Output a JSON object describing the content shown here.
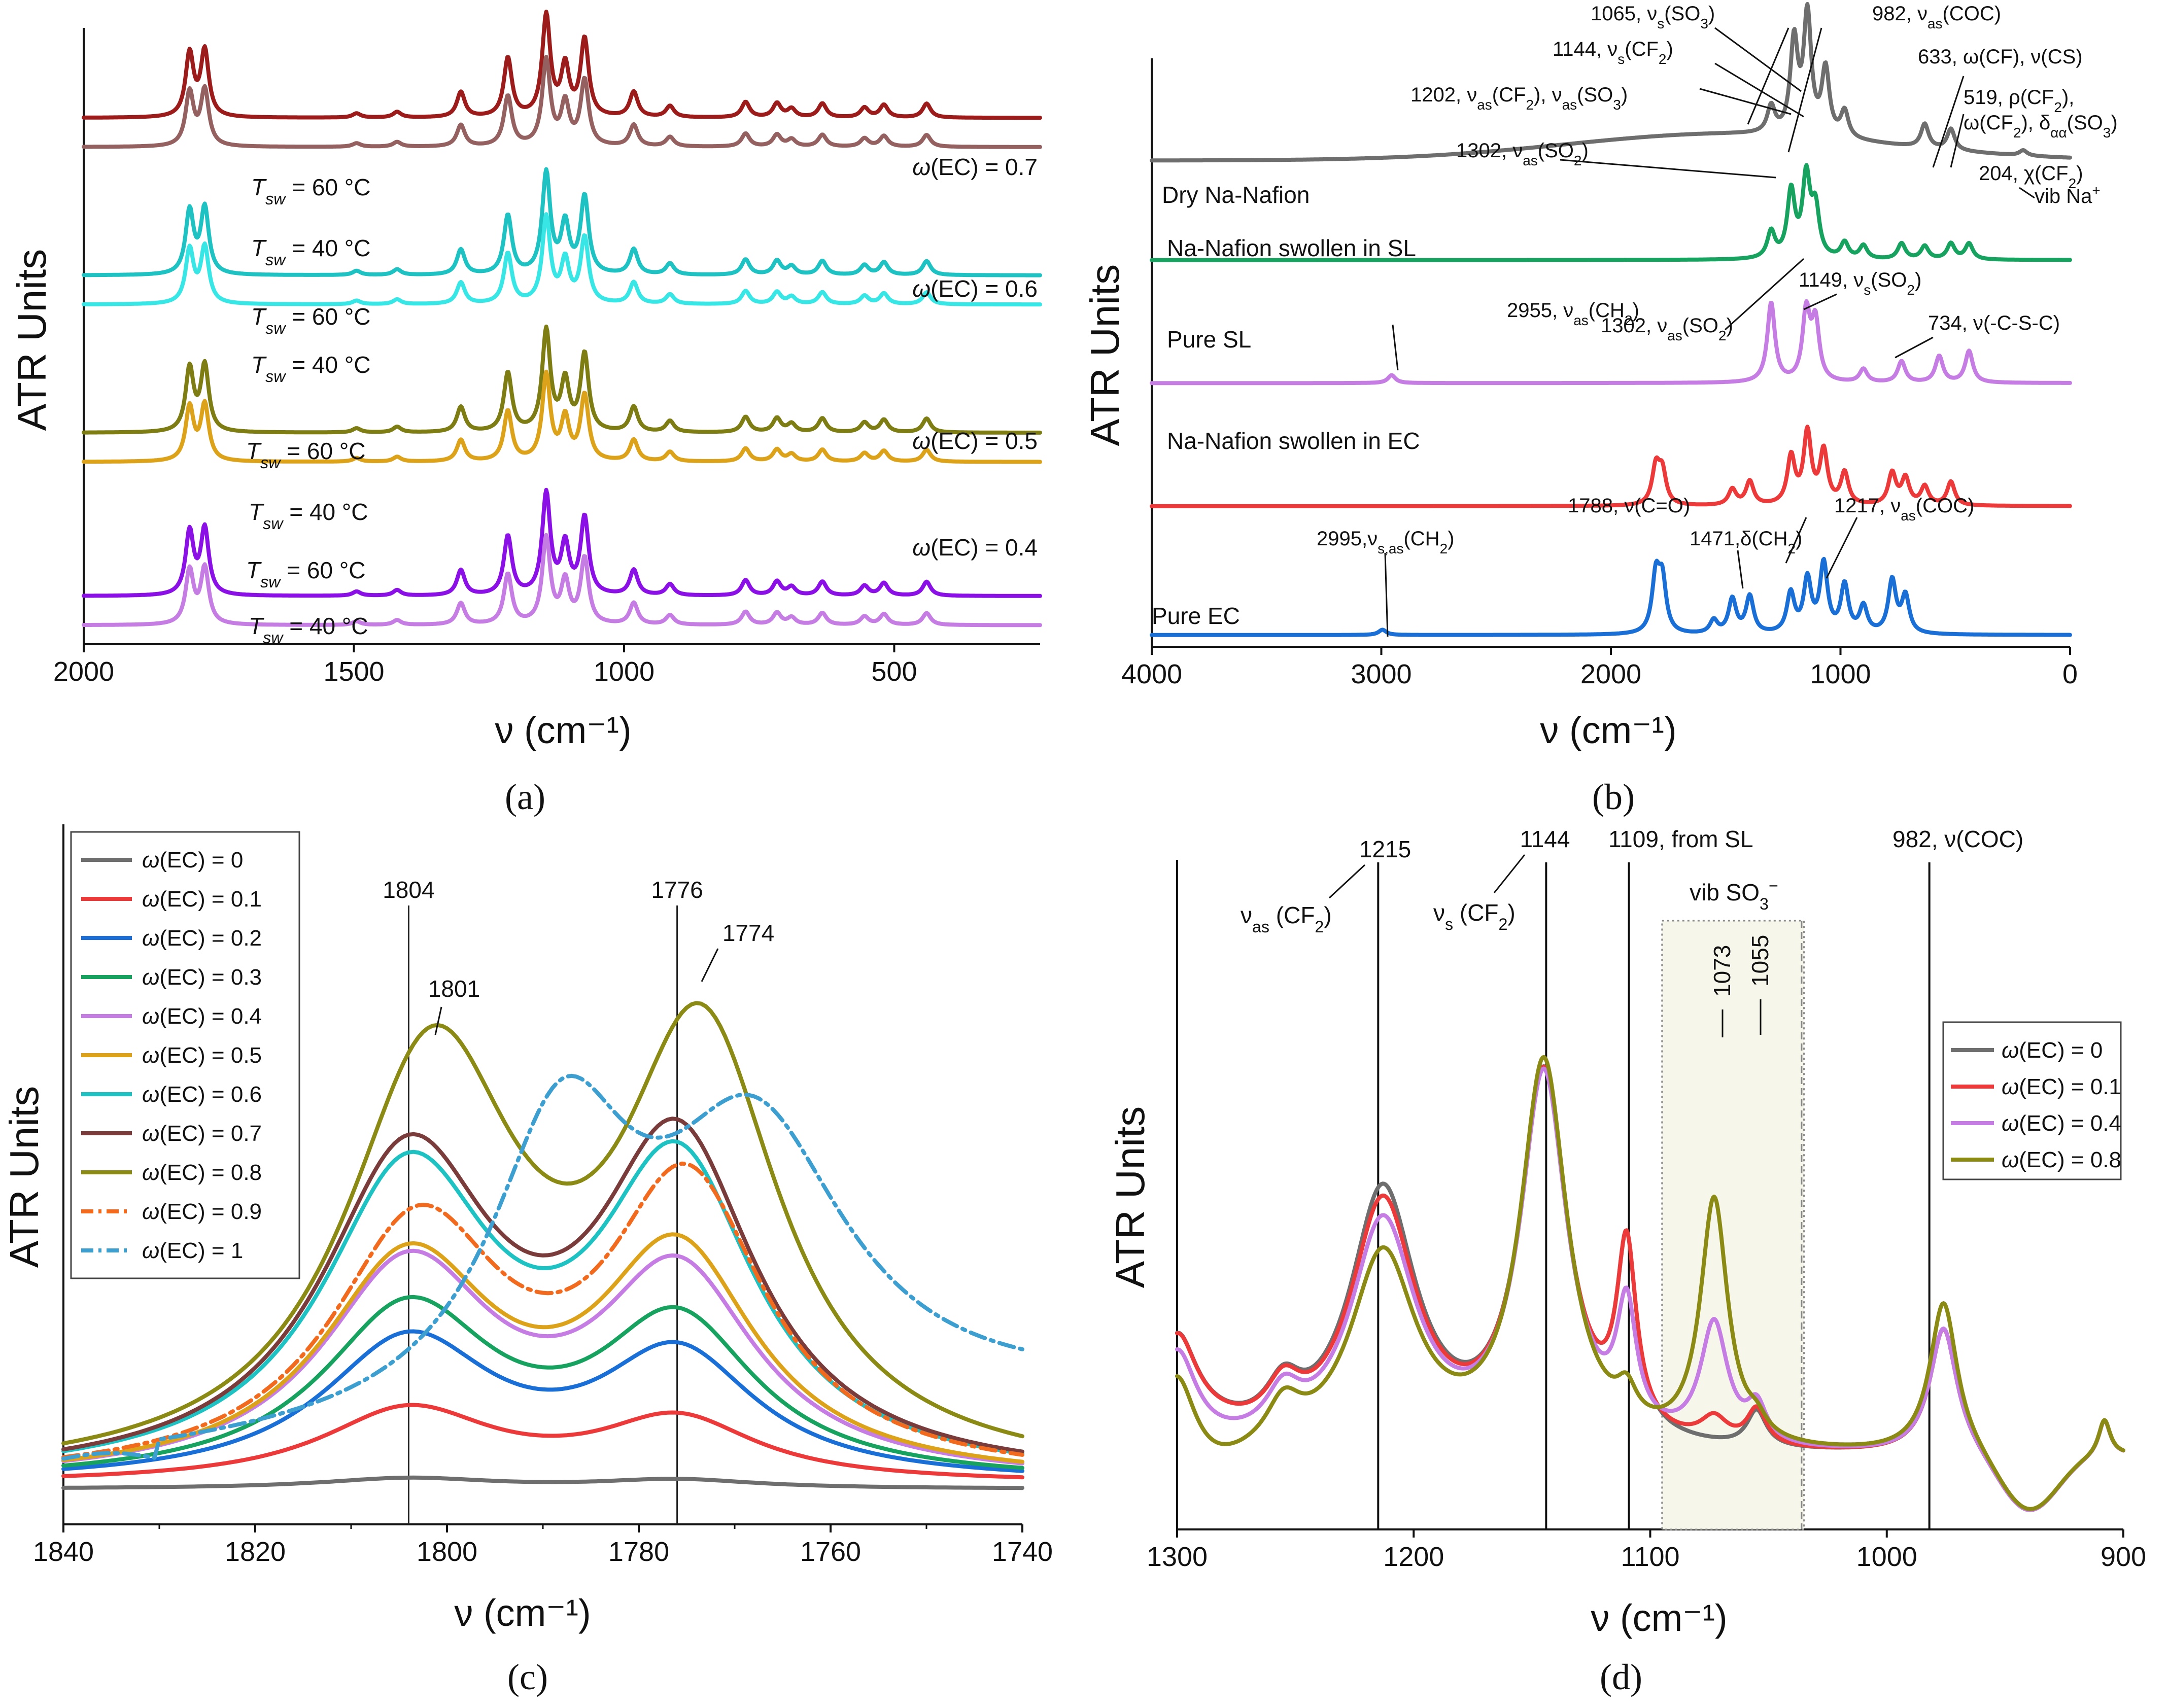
{
  "figure": {
    "panel_labels": [
      "(a)",
      "(b)",
      "(c)",
      "(d)"
    ]
  },
  "chart_data": [
    {
      "panel": "(a)",
      "type": "line",
      "xlabel": "ν (cm⁻¹)",
      "ylabel": "ATR Units",
      "xlim": [
        2000,
        230
      ],
      "xticks": [
        "2000",
        "1500",
        "1000",
        "500"
      ],
      "series": [
        {
          "name": "ω(EC) = 0.7, Tsw = 60 °C",
          "color": "#9c1c1c",
          "offset": 0.85
        },
        {
          "name": "ω(EC) = 0.7, Tsw = 40 °C",
          "color": "#946060",
          "offset": 0.8
        },
        {
          "name": "ω(EC) = 0.6, Tsw = 60 °C",
          "color": "#1ec2c2",
          "offset": 0.58
        },
        {
          "name": "ω(EC) = 0.6, Tsw = 40 °C",
          "color": "#38e6e6",
          "offset": 0.53
        },
        {
          "name": "ω(EC) = 0.5, Tsw = 60 °C",
          "color": "#7d7d14",
          "offset": 0.31
        },
        {
          "name": "ω(EC) = 0.5, Tsw = 40 °C",
          "color": "#dca21a",
          "offset": 0.26
        },
        {
          "name": "ω(EC) = 0.4, Tsw = 60 °C",
          "color": "#8a10e6",
          "offset": 0.03
        },
        {
          "name": "ω(EC) = 0.4, Tsw = 40 °C",
          "color": "#c57de4",
          "offset": -0.02
        }
      ],
      "peaks": [
        [
          1804,
          0.45
        ],
        [
          1776,
          0.47
        ],
        [
          1495,
          0.03
        ],
        [
          1420,
          0.04
        ],
        [
          1302,
          0.18
        ],
        [
          1215,
          0.42
        ],
        [
          1144,
          0.72
        ],
        [
          1109,
          0.35
        ],
        [
          1073,
          0.55
        ],
        [
          982,
          0.18
        ],
        [
          915,
          0.08
        ],
        [
          775,
          0.11
        ],
        [
          717,
          0.1
        ],
        [
          690,
          0.06
        ],
        [
          633,
          0.1
        ],
        [
          555,
          0.07
        ],
        [
          519,
          0.09
        ],
        [
          440,
          0.1
        ]
      ],
      "group_labels": [
        {
          "text": "ω(EC) = 0.7",
          "color": "#9c1c1c"
        },
        {
          "text": "ω(EC) = 0.6",
          "color": "#1ec2c2"
        },
        {
          "text": "ω(EC) = 0.5",
          "color": "#dca21a"
        },
        {
          "text": "ω(EC) = 0.4",
          "color": "#8a10e6"
        }
      ],
      "temp_labels": [
        {
          "sym": "T",
          "sub": "sw",
          "value": " = 60 °C",
          "color": "#9c1c1c"
        },
        {
          "sym": "T",
          "sub": "sw",
          "value": " = 40 °C",
          "color": "#946060"
        },
        {
          "sym": "T",
          "sub": "sw",
          "value": " = 60 °C",
          "color": "#1ec2c2"
        },
        {
          "sym": "T",
          "sub": "sw",
          "value": " = 40 °C",
          "color": "#38e6e6"
        },
        {
          "sym": "T",
          "sub": "sw",
          "value": " = 60 °C",
          "color": "#7d7d14"
        },
        {
          "sym": "T",
          "sub": "sw",
          "value": " = 40 °C",
          "color": "#dca21a"
        },
        {
          "sym": "T",
          "sub": "sw",
          "value": " = 60 °C",
          "color": "#8a10e6"
        },
        {
          "sym": "T",
          "sub": "sw",
          "value": " = 40 °C",
          "color": "#c57de4"
        }
      ]
    },
    {
      "panel": "(b)",
      "type": "line",
      "xlabel": "ν (cm⁻¹)",
      "ylabel": "ATR Units",
      "xlim": [
        4000,
        0
      ],
      "xticks": [
        "4000",
        "3000",
        "2000",
        "1000",
        "0"
      ],
      "series": [
        {
          "name": "Dry Na-Nafion",
          "color": "#6e6e6e",
          "offset": 0.83
        },
        {
          "name": "Na-Nafion swollen in SL",
          "color": "#17a35f",
          "offset": 0.66
        },
        {
          "name": "Pure SL",
          "color": "#c57de4",
          "offset": 0.45
        },
        {
          "name": "Na-Nafion swollen in EC",
          "color": "#ec3a3a",
          "offset": 0.24
        },
        {
          "name": "Pure EC",
          "color": "#1a6fd6",
          "offset": 0.02
        }
      ],
      "series_peaks": {
        "Dry Na-Nafion": [
          [
            1302,
            0.1
          ],
          [
            1202,
            0.35
          ],
          [
            1144,
            0.45
          ],
          [
            1065,
            0.25
          ],
          [
            982,
            0.1
          ],
          [
            633,
            0.09
          ],
          [
            519,
            0.08
          ],
          [
            204,
            0.02
          ]
        ],
        "Na-Nafion swollen in SL": [
          [
            1302,
            0.1
          ],
          [
            1215,
            0.25
          ],
          [
            1149,
            0.3
          ],
          [
            1109,
            0.18
          ],
          [
            982,
            0.06
          ],
          [
            900,
            0.05
          ],
          [
            734,
            0.06
          ],
          [
            633,
            0.05
          ],
          [
            519,
            0.06
          ],
          [
            440,
            0.06
          ]
        ],
        "Pure SL": [
          [
            2955,
            0.03
          ],
          [
            1302,
            0.3
          ],
          [
            1149,
            0.26
          ],
          [
            1109,
            0.22
          ],
          [
            900,
            0.05
          ],
          [
            734,
            0.08
          ],
          [
            570,
            0.1
          ],
          [
            440,
            0.12
          ]
        ],
        "Na-Nafion swollen in EC": [
          [
            1804,
            0.14
          ],
          [
            1776,
            0.12
          ],
          [
            1471,
            0.06
          ],
          [
            1395,
            0.09
          ],
          [
            1215,
            0.18
          ],
          [
            1144,
            0.27
          ],
          [
            1073,
            0.2
          ],
          [
            982,
            0.12
          ],
          [
            775,
            0.12
          ],
          [
            717,
            0.1
          ],
          [
            633,
            0.07
          ],
          [
            519,
            0.09
          ]
        ],
        "Pure EC": [
          [
            2995,
            0.02
          ],
          [
            1804,
            0.21
          ],
          [
            1776,
            0.19
          ],
          [
            1552,
            0.05
          ],
          [
            1471,
            0.13
          ],
          [
            1395,
            0.14
          ],
          [
            1217,
            0.15
          ],
          [
            1144,
            0.2
          ],
          [
            1073,
            0.26
          ],
          [
            982,
            0.18
          ],
          [
            900,
            0.1
          ],
          [
            775,
            0.2
          ],
          [
            717,
            0.14
          ]
        ]
      },
      "annotations": [
        {
          "base": "1065, ν",
          "sub": "s",
          "rest": "(SO",
          "sub2": "3",
          "end": ")"
        },
        {
          "base": "982, ν",
          "sub": "as",
          "rest": "(COC)",
          "sub2": "",
          "end": ""
        },
        {
          "base": "1144, ν",
          "sub": "s",
          "rest": "(CF",
          "sub2": "2",
          "end": ")"
        },
        {
          "base": "633, ω(CF), ν(CS)",
          "sub": "",
          "rest": "",
          "sub2": "",
          "end": ""
        },
        {
          "base": "1202, ν",
          "sub": "as",
          "rest": "(CF",
          "sub2": "2",
          "end": "), ν"
        },
        {
          "base": "519, ρ(CF",
          "sub": "2",
          "rest": "),",
          "sub2": "",
          "end": ""
        },
        {
          "base": "ω(CF",
          "sub": "2",
          "rest": "), δ",
          "sub2": "αα",
          "end": "(SO3)"
        },
        {
          "base": "1302, ν",
          "sub": "as",
          "rest": "(SO",
          "sub2": "2",
          "end": ")"
        },
        {
          "base": "204, χ(CF",
          "sub": "2",
          "rest": ")",
          "sub2": "",
          "end": ""
        },
        {
          "base": "vib Na",
          "sub": "",
          "rest": "",
          "sub2": "",
          "end": "+"
        },
        {
          "base": "1302, ν",
          "sub": "as",
          "rest": "(SO",
          "sub2": "2",
          "end": ")"
        },
        {
          "base": "1149, ν",
          "sub": "s",
          "rest": "(SO",
          "sub2": "2",
          "end": ")"
        },
        {
          "base": "2955, ν",
          "sub": "as",
          "rest": "(CH",
          "sub2": "2",
          "end": ")"
        },
        {
          "base": "734, ν(-C-S-C)",
          "sub": "",
          "rest": "",
          "sub2": "",
          "end": ""
        },
        {
          "base": "1788, ν(C=O)",
          "sub": "",
          "rest": "",
          "sub2": "",
          "end": ""
        },
        {
          "base": "1217, ν",
          "sub": "as",
          "rest": "(COC)",
          "sub2": "",
          "end": ""
        },
        {
          "base": "1471,δ(CH",
          "sub": "",
          "rest": "",
          "sub2": "2",
          "end": ")"
        },
        {
          "base": "2995,ν",
          "sub": "s,as",
          "rest": "(CH",
          "sub2": "2",
          "end": ")"
        }
      ]
    },
    {
      "panel": "(c)",
      "type": "line",
      "xlabel": "ν (cm⁻¹)",
      "ylabel": "ATR Units",
      "xlim": [
        1840,
        1740
      ],
      "xticks": [
        "1840",
        "1820",
        "1800",
        "1780",
        "1760",
        "1740"
      ],
      "vlines": [
        {
          "x": 1804,
          "label": "1804"
        },
        {
          "x": 1776,
          "label": "1776"
        }
      ],
      "peak_labels": [
        "1801",
        "1774"
      ],
      "series": [
        {
          "name": "ω(EC) = 0",
          "color": "#6e6e6e",
          "dash": "",
          "a1": 0.02,
          "a2": 0.017,
          "base": 0.0
        },
        {
          "name": "ω(EC) = 0.1",
          "color": "#ec3a3a",
          "dash": "",
          "a1": 0.14,
          "a2": 0.12,
          "base": 0.01
        },
        {
          "name": "ω(EC) = 0.2",
          "color": "#1a6fd6",
          "dash": "",
          "a1": 0.27,
          "a2": 0.24,
          "base": 0.01
        },
        {
          "name": "ω(EC) = 0.3",
          "color": "#17a35f",
          "dash": "",
          "a1": 0.33,
          "a2": 0.3,
          "base": 0.01
        },
        {
          "name": "ω(EC) = 0.4",
          "color": "#c57de4",
          "dash": "",
          "a1": 0.41,
          "a2": 0.39,
          "base": 0.01
        },
        {
          "name": "ω(EC) = 0.5",
          "color": "#dca21a",
          "dash": "",
          "a1": 0.42,
          "a2": 0.43,
          "base": 0.01
        },
        {
          "name": "ω(EC) = 0.6",
          "color": "#1ec2c2",
          "dash": "",
          "a1": 0.58,
          "a2": 0.59,
          "base": 0.01
        },
        {
          "name": "ω(EC) = 0.7",
          "color": "#7a3b3b",
          "dash": "",
          "a1": 0.61,
          "a2": 0.63,
          "base": 0.01
        },
        {
          "name": "ω(EC) = 0.8",
          "color": "#8a8a14",
          "dash": "",
          "a1": 0.8,
          "a2": 0.83,
          "base": 0.01
        },
        {
          "name": "ω(EC) = 0.9",
          "color": "#f26a1e",
          "dash": "30 12 6 12",
          "a1": 0.48,
          "a2": 0.56,
          "base": 0.01
        },
        {
          "name": "ω(EC) = 1",
          "color": "#3d9ed0",
          "dash": "30 12 6 12",
          "a1": 0.0,
          "a2": 0.0,
          "base": 0.0
        }
      ]
    },
    {
      "panel": "(d)",
      "type": "line",
      "xlabel": "ν (cm⁻¹)",
      "ylabel": "ATR Units",
      "xlim": [
        1300,
        900
      ],
      "xticks": [
        "1300",
        "1200",
        "1100",
        "1000",
        "900"
      ],
      "vlines": [
        {
          "x": 1215
        },
        {
          "x": 1144
        },
        {
          "x": 1109
        },
        {
          "x": 982
        }
      ],
      "labels": {
        "l1215": "1215",
        "l1215b": "ν",
        "l1215s": "as",
        "l1215c": " (CF",
        "l1215d": "2",
        "l1215e": ")",
        "l1144": "1144",
        "l1144b": "ν",
        "l1144s": "s",
        "l1144c": " (CF",
        "l1144d": "2",
        "l1144e": ")",
        "l1109": "1109, from SL",
        "l982": "982, ν(COC)",
        "vib": "vib SO",
        "vib_sub": "3",
        "vib_sup": "−",
        "p1073": "1073",
        "p1055": "1055"
      },
      "series": [
        {
          "name": "ω(EC) = 0",
          "color": "#6e6e6e",
          "k": 0
        },
        {
          "name": "ω(EC) = 0.1",
          "color": "#ec3a3a",
          "k": 1
        },
        {
          "name": "ω(EC) = 0.4",
          "color": "#c57de4",
          "k": 2
        },
        {
          "name": "ω(EC) = 0.8",
          "color": "#8a8a14",
          "k": 3
        }
      ]
    }
  ]
}
